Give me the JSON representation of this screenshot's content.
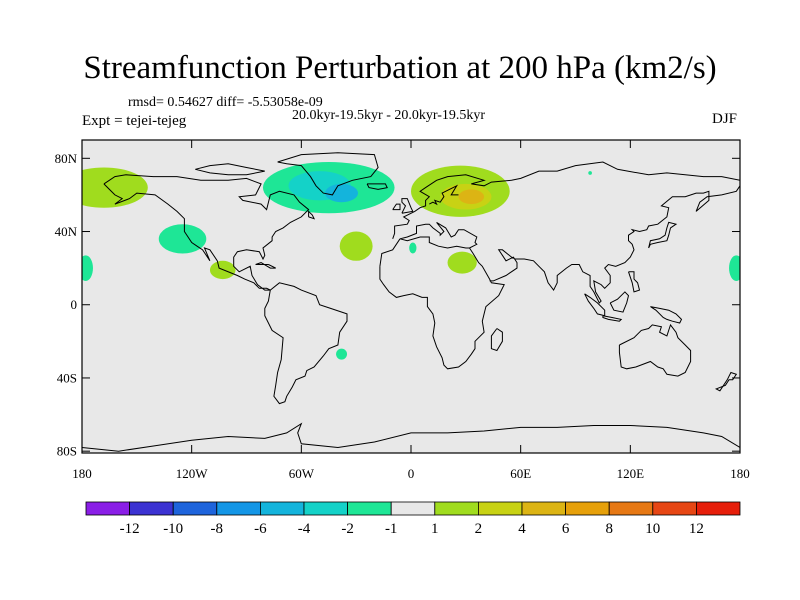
{
  "title": "Streamfunction Perturbation at 200 hPa (km2/s)",
  "stats_line": "rmsd= 0.54627 diff= -5.53058e-09",
  "period_line": "20.0kyr-19.5kyr - 20.0kyr-19.5kyr",
  "experiment_line": "Expt = tejei-tejeg",
  "season": "DJF",
  "map_background_color": "#e8e8e8",
  "coastline_color": "#000000",
  "lat_ticks": [
    {
      "value": 80,
      "label": "80N"
    },
    {
      "value": 40,
      "label": "40N"
    },
    {
      "value": 0,
      "label": "0"
    },
    {
      "value": -40,
      "label": "40S"
    },
    {
      "value": -80,
      "label": "80S"
    }
  ],
  "lon_ticks": [
    {
      "value": -180,
      "label": "180"
    },
    {
      "value": -120,
      "label": "120W"
    },
    {
      "value": -60,
      "label": "60W"
    },
    {
      "value": 0,
      "label": "0"
    },
    {
      "value": 60,
      "label": "60E"
    },
    {
      "value": 120,
      "label": "120E"
    },
    {
      "value": 180,
      "label": "180"
    }
  ],
  "colorbar": {
    "colors": [
      "#8a1ee6",
      "#3c32d2",
      "#1e64dc",
      "#1496e6",
      "#14b4dc",
      "#14d2c8",
      "#1ee696",
      "#e8e8e8",
      "#a0dc1e",
      "#c8d214",
      "#dcb414",
      "#e6a00a",
      "#e67814",
      "#e64614",
      "#e61e0a"
    ],
    "labels": [
      "-12",
      "-10",
      "-8",
      "-6",
      "-4",
      "-2",
      "-1",
      "1",
      "2",
      "4",
      "6",
      "8",
      "10",
      "12"
    ]
  },
  "anomalies": [
    {
      "lon": -168,
      "lat": 64,
      "rx": 24,
      "ry": 11,
      "color": "#a0dc1e"
    },
    {
      "lon": -45,
      "lat": 64,
      "rx": 36,
      "ry": 14,
      "color": "#1ee696"
    },
    {
      "lon": -50,
      "lat": 65,
      "rx": 17,
      "ry": 8,
      "color": "#14d2c8"
    },
    {
      "lon": -38,
      "lat": 61,
      "rx": 9,
      "ry": 5,
      "color": "#14b4dc"
    },
    {
      "lon": 27,
      "lat": 62,
      "rx": 27,
      "ry": 14,
      "color": "#a0dc1e"
    },
    {
      "lon": 30,
      "lat": 59,
      "rx": 14,
      "ry": 7,
      "color": "#c8d214"
    },
    {
      "lon": 33,
      "lat": 59,
      "rx": 7,
      "ry": 4,
      "color": "#dcb414"
    },
    {
      "lon": -125,
      "lat": 36,
      "rx": 13,
      "ry": 8,
      "color": "#1ee696"
    },
    {
      "lon": -30,
      "lat": 32,
      "rx": 9,
      "ry": 8,
      "color": "#a0dc1e"
    },
    {
      "lon": 1,
      "lat": 31,
      "rx": 2,
      "ry": 3,
      "color": "#1ee696"
    },
    {
      "lon": 28,
      "lat": 23,
      "rx": 8,
      "ry": 6,
      "color": "#a0dc1e"
    },
    {
      "lon": -103,
      "lat": 19,
      "rx": 7,
      "ry": 5,
      "color": "#a0dc1e"
    },
    {
      "lon": -178,
      "lat": 20,
      "rx": 4,
      "ry": 7,
      "color": "#1ee696"
    },
    {
      "lon": 178,
      "lat": 20,
      "rx": 4,
      "ry": 7,
      "color": "#1ee696"
    },
    {
      "lon": -38,
      "lat": -27,
      "rx": 3,
      "ry": 3,
      "color": "#1ee696"
    },
    {
      "lon": 98,
      "lat": 72,
      "rx": 1,
      "ry": 1,
      "color": "#1ee696"
    }
  ]
}
